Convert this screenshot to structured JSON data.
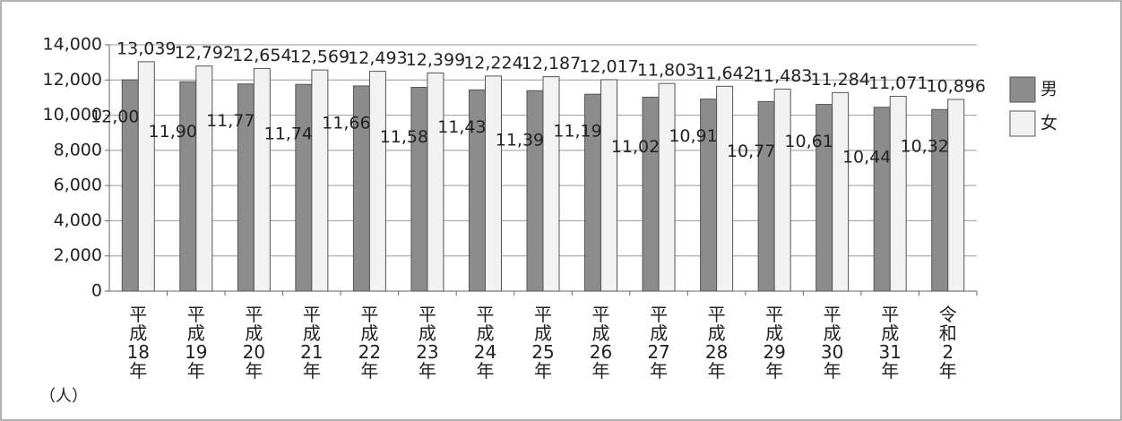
{
  "chart_data": {
    "type": "bar",
    "categories": [
      "平成18年",
      "平成19年",
      "平成20年",
      "平成21年",
      "平成22年",
      "平成23年",
      "平成24年",
      "平成25年",
      "平成26年",
      "平成27年",
      "平成28年",
      "平成29年",
      "平成30年",
      "平成31年",
      "令和2年"
    ],
    "y_unit": "（人）",
    "series": [
      {
        "name": "男",
        "color": "#8c8c8c",
        "values": [
          12009,
          11900,
          11774,
          11749,
          11661,
          11583,
          11437,
          11393,
          11191,
          11020,
          10914,
          10775,
          10610,
          10448,
          10322
        ],
        "value_labels": [
          "12,009",
          "11,900",
          "11,774",
          "11,749",
          "11,661",
          "11,583",
          "11,437",
          "11,393",
          "11,191",
          "11,020",
          "10,914",
          "10,775",
          "10,610",
          "10,448",
          "10,322"
        ]
      },
      {
        "name": "女",
        "color": "#f2f2f2",
        "values": [
          13039,
          12792,
          12654,
          12569,
          12493,
          12399,
          12224,
          12187,
          12017,
          11803,
          11642,
          11483,
          11284,
          11071,
          10896
        ],
        "value_labels": [
          "13,039",
          "12,792",
          "12,654",
          "12,569",
          "12,493",
          "12,399",
          "12,224",
          "12,187",
          "12,017",
          "11,803",
          "11,642",
          "11,483",
          "11,284",
          "11,071",
          "10,896"
        ]
      }
    ],
    "ylim": [
      0,
      14000
    ],
    "yticks": [
      0,
      {
        "value": 2000,
        "label": "2,000"
      },
      {
        "value": 4000,
        "label": "4,000"
      },
      {
        "value": 6000,
        "label": "6,000"
      },
      {
        "value": 8000,
        "label": "8,000"
      },
      {
        "value": 10000,
        "label": "10,000"
      },
      {
        "value": 12000,
        "label": "12,000"
      },
      {
        "value": 14000,
        "label": "14,000"
      }
    ],
    "grid": true,
    "legend": "right"
  }
}
